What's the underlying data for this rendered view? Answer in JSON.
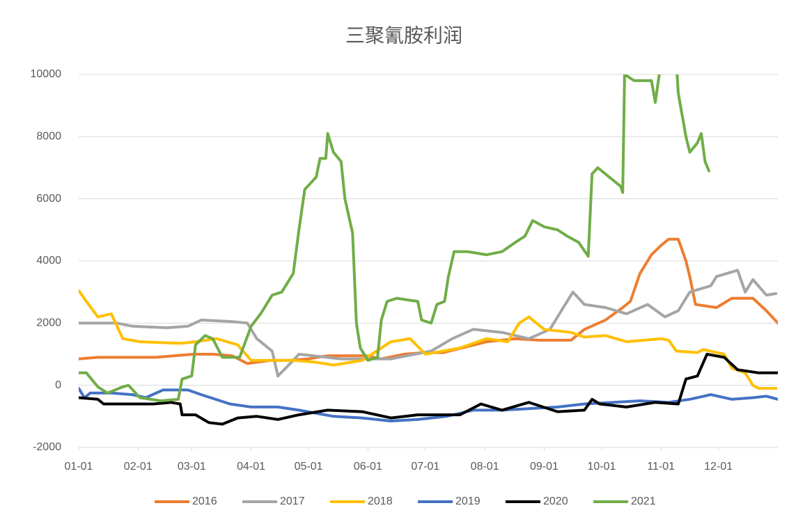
{
  "chart_data": {
    "type": "line",
    "title": "三聚氰胺利润",
    "xlim": [
      0,
      365
    ],
    "xticks": [
      {
        "value": 0,
        "label": "01-01"
      },
      {
        "value": 31,
        "label": "02-01"
      },
      {
        "value": 59,
        "label": "03-01"
      },
      {
        "value": 90,
        "label": "04-01"
      },
      {
        "value": 120,
        "label": "05-01"
      },
      {
        "value": 151,
        "label": "06-01"
      },
      {
        "value": 181,
        "label": "07-01"
      },
      {
        "value": 212,
        "label": "08-01"
      },
      {
        "value": 243,
        "label": "09-01"
      },
      {
        "value": 273,
        "label": "10-01"
      },
      {
        "value": 304,
        "label": "11-01"
      },
      {
        "value": 334,
        "label": "12-01"
      }
    ],
    "ylim": [
      -2000,
      10000
    ],
    "yticks": [
      -2000,
      0,
      2000,
      4000,
      6000,
      8000,
      10000
    ],
    "grid": true,
    "legend": "bottom",
    "series": [
      {
        "name": "2016",
        "color": "#ed7d31",
        "x": [
          0,
          10,
          20,
          30,
          40,
          50,
          60,
          70,
          80,
          88,
          100,
          110,
          120,
          130,
          140,
          150,
          158,
          170,
          180,
          190,
          200,
          213,
          228,
          240,
          257,
          264,
          275,
          284,
          288,
          293,
          299,
          304,
          308,
          313,
          317,
          319,
          322,
          333,
          341,
          352,
          359,
          365
        ],
        "values": [
          850,
          900,
          900,
          900,
          900,
          950,
          1000,
          1000,
          950,
          700,
          800,
          800,
          850,
          950,
          950,
          950,
          850,
          1000,
          1050,
          1050,
          1200,
          1400,
          1500,
          1450,
          1450,
          1800,
          2100,
          2500,
          2700,
          3600,
          4200,
          4500,
          4700,
          4700,
          4000,
          3500,
          2600,
          2500,
          2800,
          2800,
          2400,
          2000
        ]
      },
      {
        "name": "2017",
        "color": "#a5a5a5",
        "x": [
          0,
          20,
          28,
          46,
          57,
          64,
          80,
          88,
          93,
          101,
          104,
          112,
          115,
          137,
          163,
          184,
          195,
          206,
          221,
          235,
          246,
          253,
          258,
          264,
          275,
          286,
          297,
          306,
          313,
          319,
          330,
          333,
          344,
          348,
          352,
          359,
          364
        ],
        "values": [
          2000,
          2000,
          1900,
          1850,
          1900,
          2100,
          2050,
          2000,
          1500,
          1100,
          300,
          800,
          1000,
          850,
          850,
          1100,
          1500,
          1800,
          1700,
          1500,
          1800,
          2500,
          3000,
          2600,
          2500,
          2300,
          2600,
          2200,
          2400,
          3000,
          3200,
          3500,
          3700,
          3000,
          3400,
          2900,
          2950
        ]
      },
      {
        "name": "2018",
        "color": "#ffc000",
        "x": [
          0,
          4,
          10,
          17,
          23,
          32,
          53,
          61,
          72,
          83,
          90,
          112,
          123,
          133,
          148,
          163,
          173,
          181,
          199,
          213,
          224,
          230,
          235,
          243,
          257,
          264,
          275,
          286,
          304,
          308,
          312,
          323,
          326,
          337,
          341,
          348,
          352,
          355,
          364
        ],
        "values": [
          3050,
          2700,
          2200,
          2300,
          1500,
          1400,
          1350,
          1400,
          1500,
          1300,
          800,
          800,
          750,
          650,
          800,
          1400,
          1500,
          1000,
          1200,
          1500,
          1400,
          2000,
          2200,
          1800,
          1700,
          1550,
          1600,
          1400,
          1500,
          1450,
          1100,
          1050,
          1150,
          1000,
          550,
          400,
          0,
          -100,
          -100
        ]
      },
      {
        "name": "2019",
        "color": "#4472c4",
        "x": [
          0,
          3,
          6,
          17,
          28,
          35,
          44,
          57,
          64,
          79,
          90,
          104,
          115,
          133,
          148,
          163,
          177,
          192,
          206,
          221,
          235,
          250,
          264,
          279,
          293,
          308,
          319,
          330,
          341,
          352,
          359,
          365
        ],
        "values": [
          -100,
          -400,
          -250,
          -250,
          -300,
          -400,
          -150,
          -150,
          -300,
          -600,
          -700,
          -700,
          -800,
          -1000,
          -1050,
          -1150,
          -1100,
          -1000,
          -800,
          -800,
          -750,
          -700,
          -600,
          -550,
          -500,
          -550,
          -450,
          -300,
          -450,
          -400,
          -350,
          -450
        ]
      },
      {
        "name": "2020",
        "color": "#000000",
        "x": [
          0,
          10,
          13,
          39,
          48,
          53,
          54,
          61,
          68,
          75,
          83,
          93,
          104,
          115,
          130,
          148,
          163,
          177,
          199,
          210,
          221,
          235,
          250,
          264,
          268,
          272,
          286,
          301,
          313,
          317,
          323,
          328,
          337,
          344,
          355,
          365
        ],
        "values": [
          -400,
          -450,
          -600,
          -600,
          -550,
          -600,
          -950,
          -950,
          -1200,
          -1250,
          -1050,
          -1000,
          -1100,
          -950,
          -800,
          -850,
          -1050,
          -950,
          -950,
          -600,
          -800,
          -550,
          -850,
          -800,
          -450,
          -600,
          -700,
          -550,
          -600,
          200,
          300,
          1000,
          900,
          500,
          400,
          400
        ]
      },
      {
        "name": "2021",
        "color": "#70ad47",
        "x": [
          0,
          4,
          10,
          15,
          23,
          26,
          32,
          43,
          52,
          54,
          59,
          61,
          66,
          70,
          75,
          84,
          90,
          95,
          101,
          106,
          112,
          115,
          118,
          124,
          126,
          129,
          130,
          133,
          137,
          139,
          143,
          145,
          147,
          151,
          156,
          158,
          161,
          166,
          177,
          179,
          184,
          187,
          191,
          193,
          196,
          203,
          213,
          221,
          228,
          233,
          237,
          243,
          250,
          255,
          261,
          266,
          268,
          271,
          279,
          283,
          284,
          285,
          290,
          299,
          301,
          304,
          312,
          313,
          317,
          319,
          323,
          325,
          327,
          329
        ],
        "values": [
          400,
          400,
          -50,
          -250,
          -50,
          0,
          -400,
          -500,
          -450,
          200,
          300,
          1300,
          1600,
          1500,
          900,
          900,
          1900,
          2300,
          2900,
          3000,
          3600,
          5000,
          6300,
          6700,
          7300,
          7300,
          8100,
          7500,
          7200,
          6000,
          4900,
          2000,
          1200,
          800,
          900,
          2100,
          2700,
          2800,
          2700,
          2100,
          2000,
          2600,
          2700,
          3500,
          4300,
          4300,
          4200,
          4300,
          4600,
          4800,
          5300,
          5100,
          5000,
          4800,
          4600,
          4150,
          6800,
          7000,
          6600,
          6400,
          6200,
          10000,
          9800,
          9800,
          9100,
          10400,
          10400,
          9400,
          8000,
          7500,
          7800,
          8100,
          7200,
          6900
        ]
      }
    ]
  }
}
